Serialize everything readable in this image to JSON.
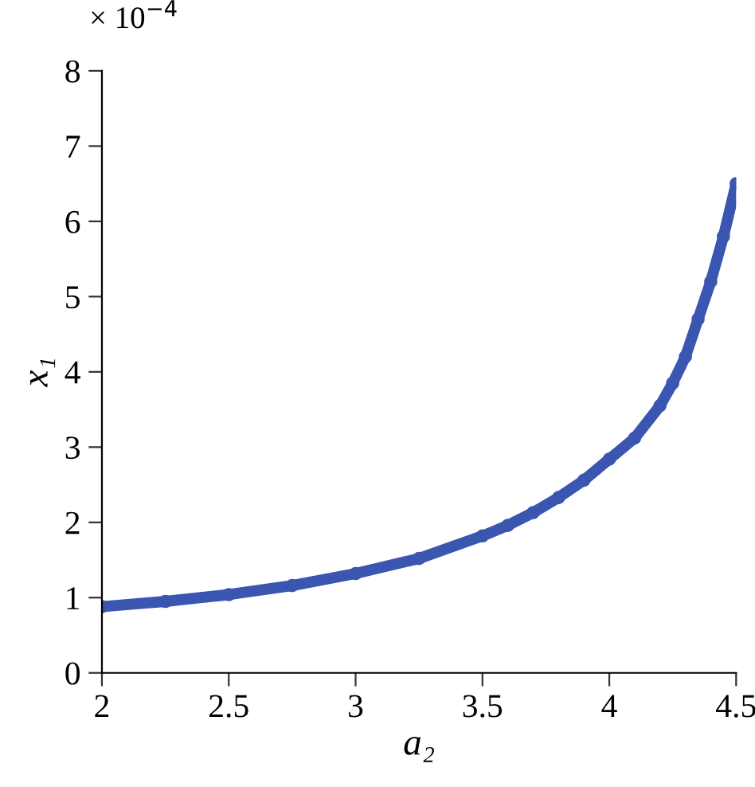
{
  "chart_data": {
    "type": "line",
    "xlabel": "a₂",
    "ylabel": "x₁",
    "annotations": [
      "× 10$^{−4}$"
    ],
    "x": [
      2.0,
      2.25,
      2.5,
      2.75,
      3.0,
      3.25,
      3.5,
      3.6,
      3.7,
      3.8,
      3.9,
      4.0,
      4.1,
      4.2,
      4.25,
      4.3,
      4.35,
      4.4,
      4.45,
      4.5
    ],
    "series": [
      {
        "color": "#3a56b0",
        "values": [
          0.88,
          0.95,
          1.04,
          1.16,
          1.32,
          1.52,
          1.82,
          1.96,
          2.13,
          2.33,
          2.56,
          2.84,
          3.12,
          3.55,
          3.85,
          4.2,
          4.7,
          5.2,
          5.8,
          6.5
        ]
      }
    ],
    "xlim": [
      2,
      4.5
    ],
    "ylim": [
      0,
      8
    ],
    "xticks": [
      2,
      2.5,
      3,
      3.5,
      4,
      4.5
    ],
    "yticks": [
      0,
      1,
      2,
      3,
      4,
      5,
      6,
      7,
      8
    ],
    "marker": "circle",
    "grid": false,
    "legend": false
  }
}
